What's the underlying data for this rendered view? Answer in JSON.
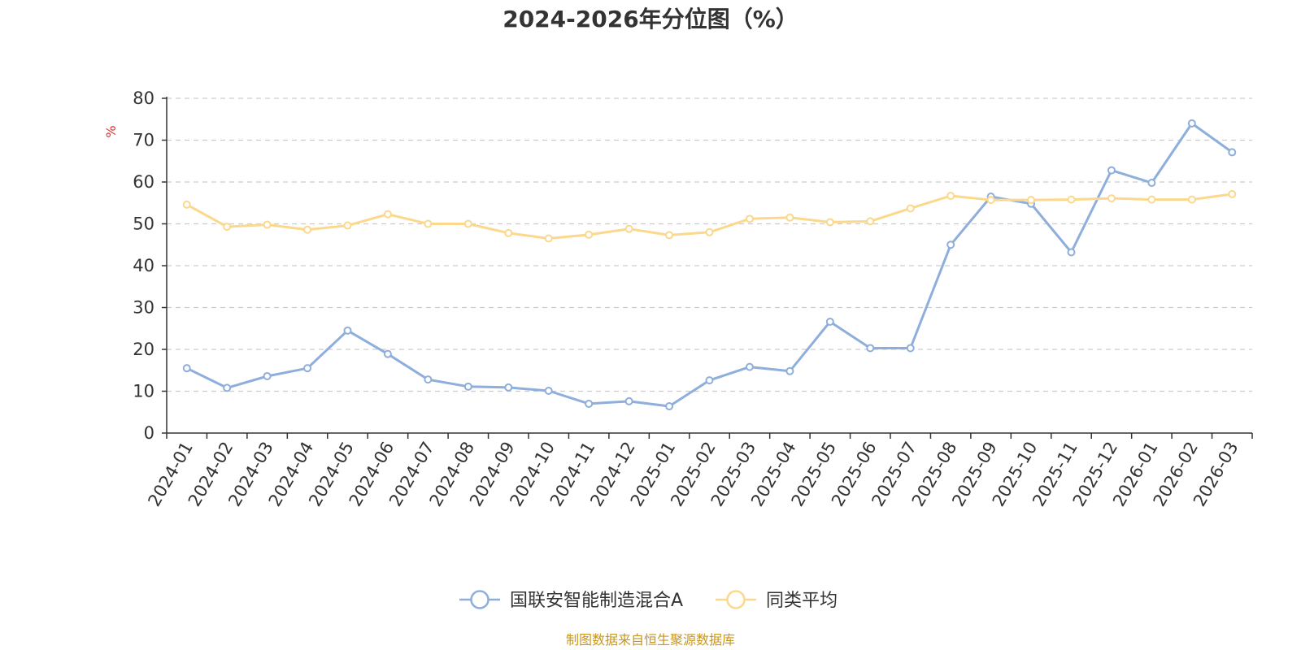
{
  "chart_data": {
    "type": "line",
    "title": "2024-2026年分位图（%）",
    "ylabel": "%",
    "ylim": [
      0,
      80
    ],
    "yticks": [
      0,
      10,
      20,
      30,
      40,
      50,
      60,
      70,
      80
    ],
    "grid": true,
    "categories": [
      "2024-01",
      "2024-02",
      "2024-03",
      "2024-04",
      "2024-05",
      "2024-06",
      "2024-07",
      "2024-08",
      "2024-09",
      "2024-10",
      "2024-11",
      "2024-12",
      "2025-01",
      "2025-02",
      "2025-03",
      "2025-04",
      "2025-05",
      "2025-06",
      "2025-07",
      "2025-08",
      "2025-09",
      "2025-10",
      "2025-11",
      "2025-12",
      "2026-01",
      "2026-02",
      "2026-03"
    ],
    "series": [
      {
        "name": "国联安智能制造混合A",
        "color": "#8eaedc",
        "values": [
          15.5,
          10.8,
          13.6,
          15.5,
          24.5,
          18.9,
          12.8,
          11.1,
          10.9,
          10.1,
          7.0,
          7.6,
          6.4,
          12.6,
          15.8,
          14.8,
          26.6,
          20.3,
          20.3,
          45.0,
          56.5,
          54.8,
          43.2,
          62.8,
          59.8,
          74.0,
          67.1
        ]
      },
      {
        "name": "同类平均",
        "color": "#fbd88c",
        "values": [
          54.6,
          49.3,
          49.8,
          48.6,
          49.6,
          52.3,
          50.0,
          50.0,
          47.8,
          46.5,
          47.4,
          48.8,
          47.3,
          48.0,
          51.2,
          51.5,
          50.4,
          50.6,
          53.7,
          56.7,
          55.7,
          55.7,
          55.8,
          56.1,
          55.8,
          55.8,
          57.1
        ]
      }
    ],
    "legend_position": "bottom-center"
  },
  "source": {
    "text": "制图数据来自恒生聚源数据库",
    "color": "#c8961e"
  },
  "colors": {
    "axis": "#333333",
    "grid": "#cccccc",
    "unit": "#e03030",
    "marker_fill": "#ffffff"
  }
}
